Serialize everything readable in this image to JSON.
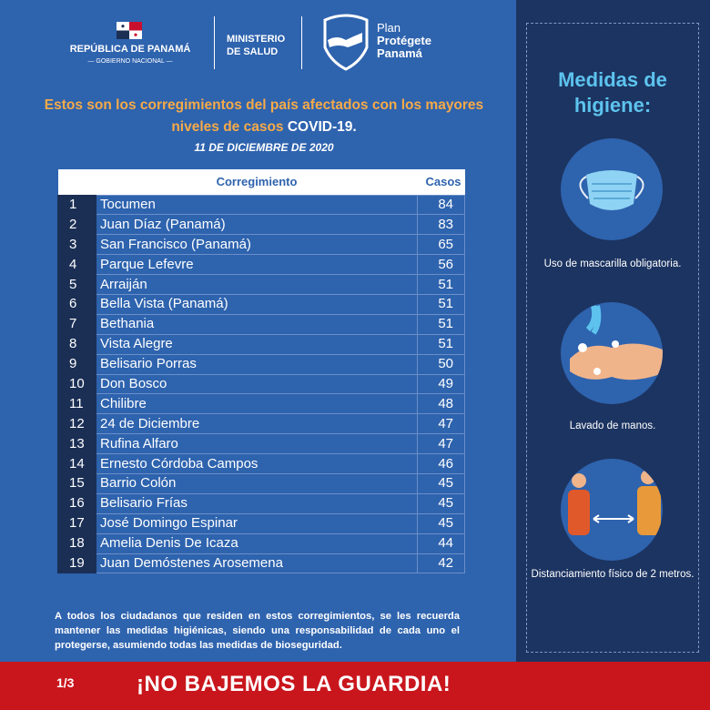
{
  "header": {
    "republic": "REPÚBLICA DE PANAMÁ",
    "government": "— GOBIERNO NACIONAL —",
    "ministry_line1": "MINISTERIO",
    "ministry_line2": "DE SALUD",
    "plan_line1": "Plan",
    "plan_line2": "Protégete",
    "plan_line3": "Panamá"
  },
  "title": {
    "text": "Estos son los corregimientos del país afectados con los mayores niveles de casos ",
    "highlight": "COVID-19.",
    "date": "11  DE DICIEMBRE DE 2020"
  },
  "table": {
    "headers": [
      "",
      "Corregimiento",
      "Casos"
    ],
    "rows": [
      [
        "1",
        "Tocumen",
        "84"
      ],
      [
        "2",
        "Juan Díaz (Panamá)",
        "83"
      ],
      [
        "3",
        "San Francisco (Panamá)",
        "65"
      ],
      [
        "4",
        "Parque Lefevre",
        "56"
      ],
      [
        "5",
        "Arraiján",
        "51"
      ],
      [
        "6",
        "Bella Vista (Panamá)",
        "51"
      ],
      [
        "7",
        "Bethania",
        "51"
      ],
      [
        "8",
        "Vista Alegre",
        "51"
      ],
      [
        "9",
        "Belisario Porras",
        "50"
      ],
      [
        "10",
        "Don Bosco",
        "49"
      ],
      [
        "11",
        "Chilibre",
        "48"
      ],
      [
        "12",
        "24 de Diciembre",
        "47"
      ],
      [
        "13",
        "Rufina Alfaro",
        "47"
      ],
      [
        "14",
        "Ernesto Córdoba Campos",
        "46"
      ],
      [
        "15",
        "Barrio Colón",
        "45"
      ],
      [
        "16",
        "Belisario Frías",
        "45"
      ],
      [
        "17",
        "José Domingo Espinar",
        "45"
      ],
      [
        "18",
        "Amelia Denis De Icaza",
        "44"
      ],
      [
        "19",
        "Juan Demóstenes Arosemena",
        "42"
      ]
    ]
  },
  "note": "A todos los ciudadanos que residen en estos corregimientos, se les recuerda mantener las medidas higiénicas, siendo una responsabilidad de cada uno el protegerse, asumiendo todas  las medidas de bioseguridad.",
  "sidebar": {
    "title": "Medidas de higiene:",
    "items": [
      {
        "icon": "face-mask-icon",
        "label": "Uso de mascarilla obligatoria."
      },
      {
        "icon": "hand-washing-icon",
        "label": "Lavado de manos."
      },
      {
        "icon": "social-distancing-icon",
        "label": "Distanciamiento físico de 2 metros."
      }
    ]
  },
  "footer": {
    "page": "1/3",
    "slogan": "¡NO BAJEMOS LA GUARDIA!"
  },
  "colors": {
    "background": "#2e63ae",
    "navy": "#1c3461",
    "accent_orange": "#f6aa48",
    "accent_cyan": "#5dc3ee",
    "footer_red": "#c9161d"
  }
}
